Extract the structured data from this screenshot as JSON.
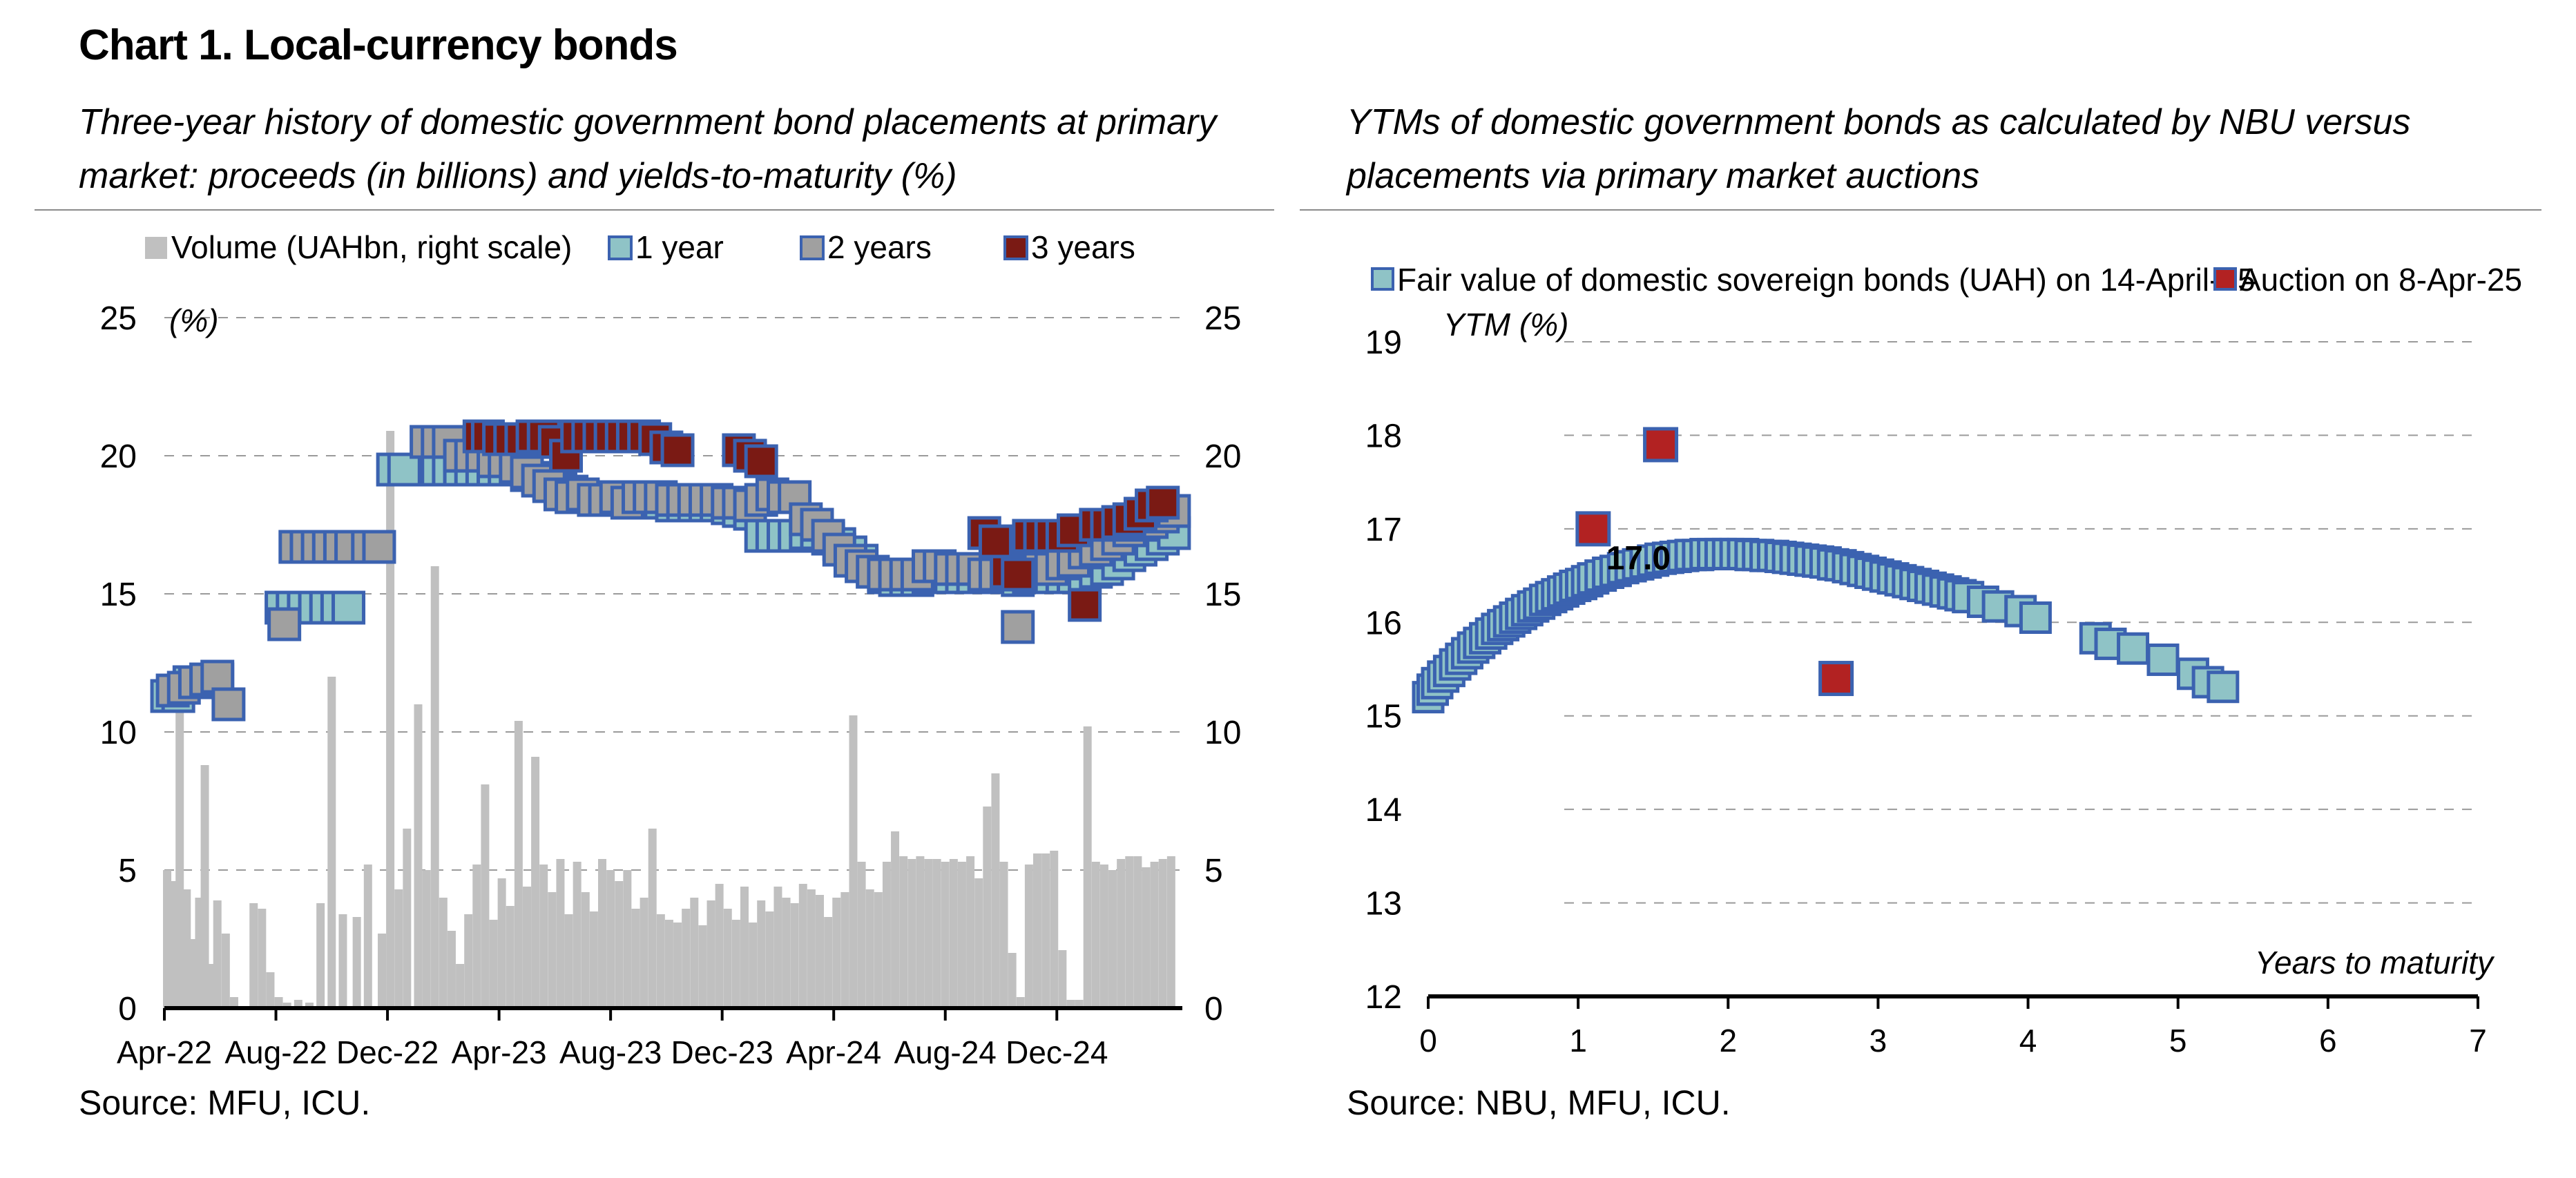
{
  "page": {
    "title": "Chart 1. Local-currency bonds",
    "left_subtitle": "Three-year history of domestic government bond placements at primary market: proceeds (in billions) and yields-to-maturity (%)",
    "right_subtitle_emph": "YTMs",
    "right_subtitle_rest": " of domestic government bonds as calculated by NBU versus placements via primary market auctions",
    "left_source": "Source: MFU, ICU.",
    "right_source": "Source: NBU, MFU, ICU."
  },
  "chart_data": [
    {
      "type": "bar",
      "unit_label": "(%)",
      "legend": [
        "Volume (UAHbn, right scale)",
        "1 year",
        "2 years",
        "3 years"
      ],
      "legend_placement": "top",
      "x_ticks": [
        "Apr-22",
        "Aug-22",
        "Dec-22",
        "Apr-23",
        "Aug-23",
        "Dec-23",
        "Apr-24",
        "Aug-24",
        "Dec-24"
      ],
      "y_ticks_left": [
        "0",
        "5",
        "10",
        "15",
        "20",
        "25"
      ],
      "y_ticks_right": [
        "0",
        "5",
        "10",
        "15",
        "20",
        "25"
      ],
      "ylim_left": [
        0,
        25
      ],
      "ylim_right": [
        0,
        25
      ],
      "grid": true,
      "colors": {
        "volume": "#c0c0c0",
        "one_year": "#8fc3c6",
        "two_years": "#a0a0a0",
        "three_years": "#7a1a14",
        "marker_edge": "#3b62b0"
      },
      "x_range_months": [
        0,
        36.5
      ],
      "volume": {
        "name": "Volume (UAHbn, right scale)",
        "x_months": [
          0.1,
          0.35,
          0.55,
          0.8,
          1.0,
          1.25,
          1.45,
          1.7,
          1.9,
          2.2,
          2.5,
          3.2,
          3.5,
          3.8,
          4.1,
          4.4,
          4.8,
          5.2,
          5.6,
          6.0,
          6.4,
          6.9,
          7.3,
          7.8,
          8.1,
          8.4,
          8.7,
          9.1,
          9.4,
          9.7,
          10.0,
          10.3,
          10.6,
          10.9,
          11.2,
          11.5,
          11.8,
          12.1,
          12.4,
          12.7,
          13.0,
          13.3,
          13.6,
          13.9,
          14.2,
          14.5,
          14.8,
          15.1,
          15.4,
          15.7,
          16.0,
          16.3,
          16.6,
          16.9,
          17.2,
          17.5,
          17.8,
          18.1,
          18.4,
          18.7,
          19.0,
          19.3,
          19.6,
          19.9,
          20.2,
          20.5,
          20.8,
          21.1,
          21.4,
          21.7,
          22.0,
          22.3,
          22.6,
          22.9,
          23.2,
          23.5,
          23.8,
          24.1,
          24.4,
          24.7,
          25.0,
          25.3,
          25.6,
          25.9,
          26.2,
          26.5,
          26.8,
          27.1,
          27.4,
          27.7,
          28.0,
          28.3,
          28.6,
          28.9,
          29.2,
          29.5,
          29.8,
          30.1,
          30.4,
          30.7,
          31.0,
          31.3,
          31.6,
          31.9,
          32.2,
          32.5,
          32.8,
          33.1,
          33.4,
          33.7,
          34.0,
          34.3,
          34.6,
          34.9,
          35.2,
          35.5,
          35.8,
          36.1
        ],
        "values": [
          5.0,
          4.6,
          11.3,
          4.3,
          2.5,
          4.0,
          8.8,
          1.6,
          3.9,
          2.7,
          0.4,
          3.8,
          3.6,
          1.3,
          0.4,
          0.2,
          0.3,
          0.2,
          3.8,
          12.0,
          3.4,
          3.3,
          5.2,
          2.7,
          20.9,
          4.3,
          6.5,
          11.0,
          5.0,
          16.0,
          4.0,
          2.8,
          1.6,
          3.4,
          5.2,
          8.1,
          3.2,
          4.7,
          3.7,
          10.4,
          4.4,
          9.1,
          5.2,
          4.2,
          5.4,
          3.4,
          5.3,
          4.2,
          3.5,
          5.4,
          5.0,
          4.6,
          5.0,
          3.6,
          4.0,
          6.5,
          3.4,
          3.2,
          3.1,
          3.6,
          4.0,
          3.0,
          3.9,
          4.5,
          3.6,
          3.2,
          4.4,
          3.1,
          3.9,
          3.5,
          4.4,
          4.0,
          3.8,
          4.5,
          4.3,
          4.1,
          3.3,
          4.0,
          4.2,
          10.6,
          5.3,
          4.3,
          4.2,
          5.3,
          6.4,
          5.5,
          5.4,
          5.5,
          5.4,
          5.4,
          5.3,
          5.4,
          5.3,
          5.5,
          4.7,
          7.3,
          8.5,
          5.3,
          2.0,
          0.4,
          5.2,
          5.6,
          5.6,
          5.7,
          2.1,
          0.3,
          0.3,
          10.2,
          5.3,
          5.2,
          5.0,
          5.4,
          5.5,
          5.5,
          5.1,
          5.3,
          5.4,
          5.5
        ]
      },
      "series": [
        {
          "name": "1 year",
          "x_months": [
            0.1,
            0.5,
            0.9,
            1.3,
            1.7,
            1.9,
            4.2,
            4.6,
            5.0,
            5.4,
            5.8,
            6.2,
            6.6,
            7.0,
            7.4,
            8.2,
            8.6,
            9.8,
            10.2,
            10.6,
            11.0,
            11.4,
            11.8,
            12.2,
            12.6,
            13.0,
            13.4,
            13.8,
            14.2,
            14.6,
            15.0,
            15.4,
            15.8,
            16.2,
            16.6,
            17.0,
            17.4,
            17.8,
            18.2,
            18.6,
            19.0,
            19.4,
            19.8,
            20.2,
            20.6,
            21.0,
            21.4,
            21.8,
            22.2,
            22.6,
            23.0,
            23.4,
            23.8,
            24.2,
            24.6,
            25.0,
            25.4,
            25.8,
            26.2,
            26.6,
            27.0,
            27.4,
            27.8,
            28.2,
            28.6,
            29.0,
            29.4,
            29.8,
            30.2,
            30.6,
            31.0,
            31.4,
            31.8,
            32.2,
            32.6,
            33.0,
            33.4,
            33.8,
            34.2,
            34.6,
            35.0,
            35.4,
            35.8,
            36.2
          ],
          "values": [
            11.3,
            11.3,
            11.8,
            11.8,
            11.9,
            11.9,
            14.5,
            14.5,
            14.5,
            14.5,
            14.5,
            14.5,
            14.5,
            16.7,
            16.7,
            19.5,
            19.5,
            19.5,
            19.5,
            19.5,
            19.5,
            19.5,
            19.5,
            19.5,
            19.5,
            19.3,
            19.2,
            19.0,
            18.8,
            18.7,
            18.6,
            18.5,
            18.5,
            18.4,
            18.4,
            18.3,
            18.3,
            18.3,
            18.2,
            18.2,
            18.2,
            18.2,
            18.2,
            18.1,
            18.0,
            17.9,
            17.1,
            17.1,
            17.1,
            17.1,
            17.2,
            17.2,
            17.0,
            16.8,
            16.5,
            16.2,
            15.8,
            15.6,
            15.5,
            15.5,
            15.5,
            15.6,
            15.6,
            15.6,
            15.6,
            15.6,
            15.6,
            15.6,
            15.6,
            15.5,
            15.6,
            15.6,
            15.6,
            15.6,
            15.6,
            15.6,
            15.8,
            15.9,
            16.1,
            16.4,
            16.6,
            16.8,
            17.0,
            17.2
          ]
        },
        {
          "name": "2 years",
          "x_months": [
            0.3,
            0.7,
            1.1,
            1.5,
            1.9,
            2.3,
            4.3,
            4.7,
            5.1,
            5.5,
            5.9,
            6.3,
            6.7,
            7.3,
            7.7,
            9.4,
            9.8,
            10.2,
            10.6,
            11.0,
            11.4,
            11.8,
            12.2,
            12.6,
            13.0,
            13.4,
            13.8,
            14.2,
            14.6,
            15.0,
            15.4,
            15.8,
            16.2,
            16.6,
            17.0,
            17.4,
            17.8,
            18.2,
            18.6,
            19.0,
            19.4,
            19.8,
            20.2,
            20.6,
            21.0,
            21.4,
            21.8,
            22.2,
            22.6,
            23.0,
            23.4,
            23.8,
            24.2,
            24.6,
            25.0,
            25.4,
            25.8,
            26.2,
            26.6,
            27.0,
            27.4,
            27.8,
            28.2,
            28.6,
            29.0,
            29.4,
            29.8,
            30.2,
            30.6,
            31.0,
            31.4,
            31.8,
            32.2,
            32.6,
            33.0,
            33.4,
            33.8,
            34.2,
            34.6,
            35.0,
            35.4,
            35.8,
            36.2
          ],
          "values": [
            11.5,
            11.6,
            11.8,
            11.9,
            12.0,
            11.0,
            13.9,
            16.7,
            16.7,
            16.7,
            16.7,
            16.7,
            16.7,
            16.7,
            16.7,
            20.5,
            20.5,
            20.5,
            20.0,
            20.0,
            20.0,
            19.8,
            19.8,
            19.6,
            19.4,
            19.1,
            18.9,
            18.6,
            18.5,
            18.6,
            18.4,
            18.4,
            18.5,
            18.3,
            18.5,
            18.5,
            18.5,
            18.4,
            18.4,
            18.4,
            18.4,
            18.4,
            18.3,
            18.3,
            18.2,
            18.4,
            18.6,
            18.5,
            18.5,
            17.7,
            17.5,
            17.1,
            16.6,
            16.2,
            16.0,
            15.8,
            15.7,
            15.7,
            15.7,
            15.7,
            16.0,
            16.0,
            15.9,
            15.9,
            15.9,
            15.7,
            15.7,
            15.7,
            13.8,
            15.9,
            15.9,
            15.9,
            16.1,
            16.2,
            16.5,
            16.6,
            16.8,
            17.0,
            17.3,
            17.5,
            17.6,
            17.8,
            18.0
          ]
        },
        {
          "name": "3 years",
          "x_months": [
            11.3,
            11.6,
            12.0,
            12.4,
            12.8,
            13.2,
            13.6,
            14.0,
            14.4,
            14.8,
            15.2,
            15.6,
            16.0,
            16.4,
            16.8,
            17.2,
            17.6,
            18.0,
            18.4,
            20.6,
            21.0,
            21.4,
            29.4,
            29.8,
            30.2,
            30.6,
            31.0,
            31.4,
            31.8,
            32.2,
            32.6,
            33.0,
            33.4,
            33.8,
            34.2,
            34.6,
            35.0,
            35.4,
            35.8
          ],
          "values": [
            20.7,
            20.7,
            20.6,
            20.6,
            20.6,
            20.7,
            20.7,
            20.5,
            20.0,
            20.7,
            20.7,
            20.7,
            20.7,
            20.7,
            20.7,
            20.7,
            20.6,
            20.3,
            20.2,
            20.2,
            20.0,
            19.8,
            17.2,
            16.9,
            15.8,
            15.7,
            17.1,
            17.1,
            17.1,
            17.1,
            17.3,
            14.6,
            17.5,
            17.5,
            17.6,
            17.7,
            17.9,
            18.2,
            18.3
          ]
        }
      ]
    },
    {
      "type": "scatter",
      "legend": [
        "Fair value of domestic sovereign bonds (UAH) on 14-April-25",
        "Auction on 8-Apr-25"
      ],
      "legend_placement": "top",
      "ylabel": "YTM (%)",
      "xlabel": "Years to maturity",
      "xlim": [
        0,
        7
      ],
      "ylim": [
        12,
        19
      ],
      "x_ticks": [
        "0",
        "1",
        "2",
        "3",
        "4",
        "5",
        "6",
        "7"
      ],
      "y_ticks": [
        "12",
        "13",
        "14",
        "15",
        "16",
        "17",
        "18",
        "19"
      ],
      "grid": true,
      "colors": {
        "fair": "#8fc3c6",
        "fair_edge": "#3b62b0",
        "auction": "#b22222"
      },
      "annotation": {
        "text": "17.0",
        "x": 1.15,
        "y": 16.7
      },
      "series": [
        {
          "name": "Fair value of domestic sovereign bonds (UAH) on 14-April-25",
          "x": [
            0.0,
            0.03,
            0.06,
            0.1,
            0.14,
            0.18,
            0.22,
            0.26,
            0.3,
            0.34,
            0.38,
            0.42,
            0.46,
            0.5,
            0.54,
            0.58,
            0.62,
            0.66,
            0.7,
            0.74,
            0.78,
            0.82,
            0.86,
            0.9,
            0.94,
            0.98,
            1.02,
            1.06,
            1.1,
            1.15,
            1.2,
            1.25,
            1.3,
            1.35,
            1.4,
            1.45,
            1.5,
            1.55,
            1.6,
            1.65,
            1.7,
            1.75,
            1.8,
            1.85,
            1.9,
            1.95,
            2.0,
            2.05,
            2.1,
            2.15,
            2.2,
            2.25,
            2.3,
            2.35,
            2.4,
            2.45,
            2.5,
            2.55,
            2.6,
            2.65,
            2.7,
            2.75,
            2.8,
            2.85,
            2.9,
            2.95,
            3.0,
            3.05,
            3.1,
            3.15,
            3.2,
            3.25,
            3.3,
            3.35,
            3.4,
            3.45,
            3.5,
            3.55,
            3.6,
            3.7,
            3.8,
            3.95,
            4.05,
            4.45,
            4.55,
            4.7,
            4.9,
            5.1,
            5.2,
            5.3
          ],
          "values": [
            15.2,
            15.28,
            15.35,
            15.42,
            15.48,
            15.55,
            15.61,
            15.67,
            15.73,
            15.78,
            15.83,
            15.88,
            15.93,
            15.97,
            16.01,
            16.05,
            16.09,
            16.13,
            16.17,
            16.2,
            16.24,
            16.27,
            16.3,
            16.33,
            16.36,
            16.39,
            16.41,
            16.44,
            16.47,
            16.5,
            16.53,
            16.55,
            16.58,
            16.6,
            16.62,
            16.64,
            16.66,
            16.68,
            16.69,
            16.7,
            16.71,
            16.72,
            16.72,
            16.73,
            16.73,
            16.73,
            16.73,
            16.73,
            16.73,
            16.72,
            16.72,
            16.71,
            16.71,
            16.7,
            16.69,
            16.68,
            16.67,
            16.66,
            16.65,
            16.64,
            16.62,
            16.61,
            16.59,
            16.57,
            16.55,
            16.53,
            16.51,
            16.49,
            16.47,
            16.45,
            16.43,
            16.41,
            16.39,
            16.37,
            16.35,
            16.33,
            16.31,
            16.29,
            16.27,
            16.22,
            16.17,
            16.12,
            16.05,
            15.83,
            15.77,
            15.72,
            15.6,
            15.45,
            15.36,
            15.31
          ]
        },
        {
          "name": "Auction on 8-Apr-25",
          "x": [
            1.1,
            1.55,
            2.72
          ],
          "values": [
            17.0,
            17.9,
            15.4
          ]
        }
      ]
    }
  ]
}
